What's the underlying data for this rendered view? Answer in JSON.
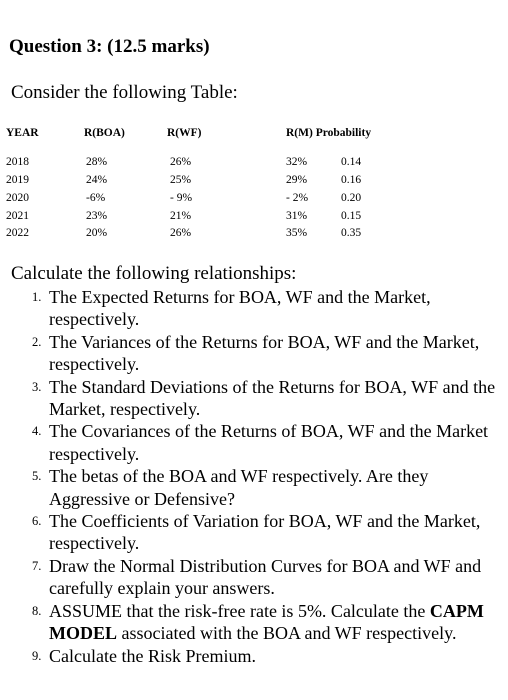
{
  "question": {
    "title": "Question 3: (12.5 marks)",
    "intro": "Consider the following Table:"
  },
  "table": {
    "headers": {
      "year": "YEAR",
      "boa": "R(BOA)",
      "wf": "R(WF)",
      "market_prob": "R(M) Probability"
    },
    "rows": [
      {
        "year": "2018",
        "boa": "28%",
        "wf": "26%",
        "market": "32%",
        "prob": "0.14"
      },
      {
        "year": "2019",
        "boa": "24%",
        "wf": "25%",
        "market": "29%",
        "prob": "0.16"
      },
      {
        "year": "2020",
        "boa": "-6%",
        "wf": "- 9%",
        "market": "- 2%",
        "prob": "0.20"
      },
      {
        "year": "2021",
        "boa": "23%",
        "wf": "21%",
        "market": "31%",
        "prob": "0.15"
      },
      {
        "year": "2022",
        "boa": "20%",
        "wf": "26%",
        "market": "35%",
        "prob": "0.35"
      }
    ]
  },
  "calculate_title": "Calculate the following relationships:",
  "items": [
    {
      "num": "1.",
      "pre": "The Expected Returns for BOA, WF and the Market, respectively.",
      "bold": "",
      "post": ""
    },
    {
      "num": "2.",
      "pre": "The Variances of the Returns for BOA, WF and the Market, respectively.",
      "bold": "",
      "post": ""
    },
    {
      "num": "3.",
      "pre": "The Standard Deviations of the Returns for BOA, WF and the Market, respectively.",
      "bold": "",
      "post": ""
    },
    {
      "num": "4.",
      "pre": "The Covariances of the Returns of BOA, WF and the Market respectively.",
      "bold": "",
      "post": ""
    },
    {
      "num": "5.",
      "pre": "The betas of the BOA and WF respectively. Are they Aggressive or Defensive?",
      "bold": "",
      "post": ""
    },
    {
      "num": "6.",
      "pre": "The Coefficients of Variation for BOA, WF and the Market, respectively.",
      "bold": "",
      "post": ""
    },
    {
      "num": "7.",
      "pre": "Draw the Normal Distribution Curves for BOA and WF and carefully explain your answers.",
      "bold": "",
      "post": ""
    },
    {
      "num": "8.",
      "pre": "ASSUME that the risk-free rate is 5%. Calculate the ",
      "bold": "CAPM MODEL",
      "post": " associated with the BOA and WF respectively."
    },
    {
      "num": "9.",
      "pre": "Calculate the Risk Premium.",
      "bold": "",
      "post": ""
    }
  ]
}
